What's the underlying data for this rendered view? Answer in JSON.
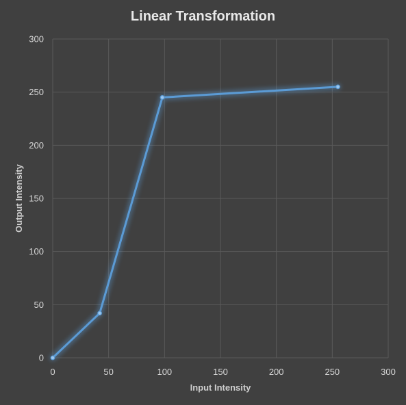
{
  "chart_data": {
    "type": "line",
    "title": "Linear Transformation",
    "xlabel": "Input Intensity",
    "ylabel": "Output Intensity",
    "xlim": [
      0,
      300
    ],
    "ylim": [
      0,
      300
    ],
    "x_ticks": [
      0,
      50,
      100,
      150,
      200,
      250,
      300
    ],
    "y_ticks": [
      0,
      50,
      100,
      150,
      200,
      250,
      300
    ],
    "grid": true,
    "legend": "none",
    "series": [
      {
        "color": "#5b9bd5",
        "x": [
          0,
          42,
          98,
          255
        ],
        "y": [
          0,
          42,
          245,
          255
        ]
      }
    ]
  }
}
